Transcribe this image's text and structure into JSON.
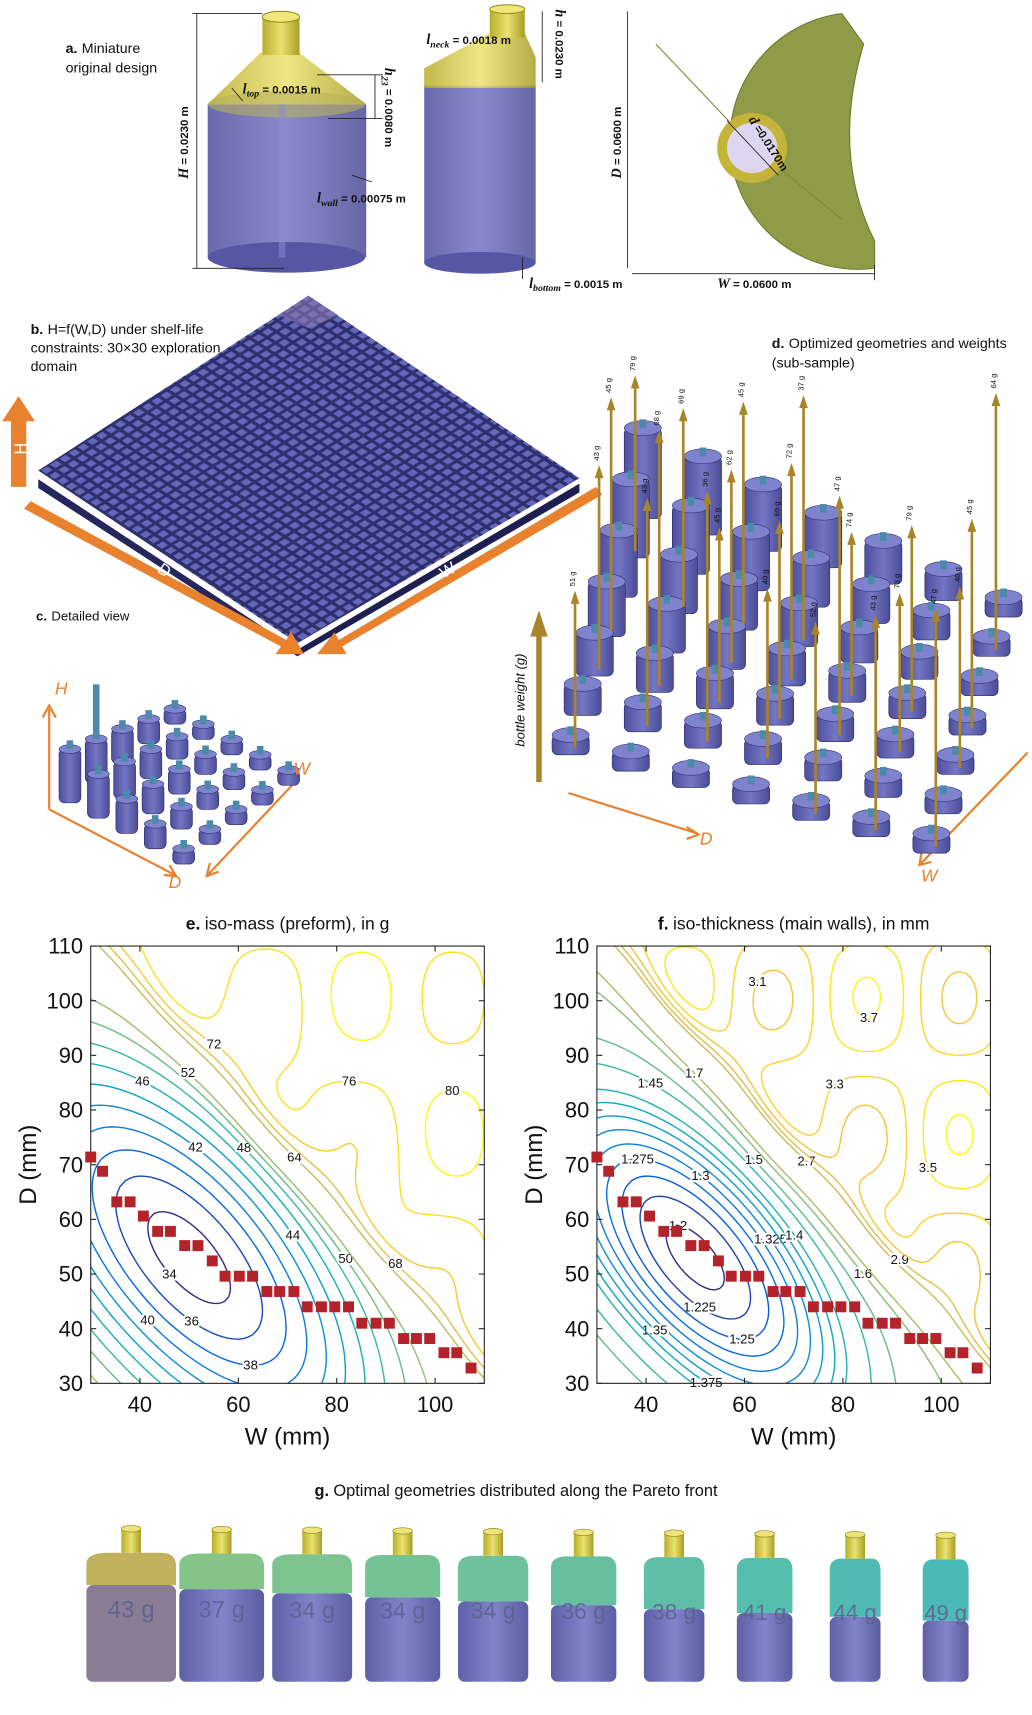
{
  "panel_a": {
    "label": "a.",
    "title_lines": [
      "Miniature",
      "original design"
    ],
    "dimensions": [
      {
        "symbol": "l",
        "sub": "top",
        "text": " = 0.0015 m"
      },
      {
        "symbol": "h",
        "sub": "23",
        "text": " = 0.0080 m"
      },
      {
        "symbol": "H",
        "text": " = 0.0230 m"
      },
      {
        "symbol": "l",
        "sub": "wall",
        "text": " = 0.00075 m"
      },
      {
        "symbol": "l",
        "sub": "neck",
        "text": " = 0.0018 m"
      },
      {
        "symbol": "h",
        "text": " = 0.0230 m"
      },
      {
        "symbol": "l",
        "sub": "bottom",
        "text": " = 0.0015 m"
      },
      {
        "symbol": "D",
        "text": " = 0.0600 m"
      },
      {
        "symbol": "d",
        "text": " =0.0170m"
      },
      {
        "symbol": "W",
        "text": " = 0.0600 m"
      }
    ]
  },
  "panel_b": {
    "label": "b.",
    "title_lines": [
      "H=f(W,D) under shelf-life",
      "constraints: 30×30 exploration",
      "domain"
    ],
    "axes": [
      "H",
      "D",
      "W"
    ]
  },
  "panel_c": {
    "label": "c.",
    "title": "Detailed view",
    "axes": [
      "H",
      "W",
      "D"
    ]
  },
  "panel_d": {
    "label": "d.",
    "title_lines": [
      "Optimized geometries and weights",
      "(sub-sample)"
    ],
    "axis_label": "bottle weight (g)",
    "axes": [
      "D",
      "W"
    ],
    "weight_labels": [
      "51 g",
      "69 g",
      "47 g",
      "45 g",
      "43 g",
      "68 g",
      "52 g",
      "45 g",
      "40 g",
      "45 g",
      "36 g",
      "79 g",
      "43 g",
      "74 g",
      "43 g",
      "37 g",
      "40 g",
      "45 g",
      "73 g",
      "69 g",
      "47 g",
      "79 g",
      "72 g",
      "64 g",
      "62 g"
    ]
  },
  "chart_data": [
    {
      "type": "contour",
      "label": "e.",
      "title": "iso-mass (preform), in g",
      "xlabel": "W (mm)",
      "ylabel": "D (mm)",
      "xlim": [
        30,
        110
      ],
      "ylim": [
        30,
        110
      ],
      "xticks": [
        40,
        60,
        80,
        100
      ],
      "yticks": [
        30,
        40,
        50,
        60,
        70,
        80,
        90,
        100,
        110
      ],
      "contour_levels": [
        34,
        36,
        38,
        40,
        42,
        44,
        46,
        48,
        50,
        52,
        64,
        68,
        72,
        76,
        80
      ],
      "pareto": {
        "color": "#b5232a",
        "x": [
          30,
          32.4,
          35.3,
          38,
          40.7,
          43.6,
          46.2,
          49.1,
          51.8,
          54.7,
          57.3,
          60.2,
          62.9,
          65.8,
          68.4,
          71.3,
          74,
          76.9,
          79.6,
          82.4,
          85.1,
          88,
          90.7,
          93.6,
          96.2,
          98.9,
          101.8,
          104.4,
          107.3
        ],
        "y": [
          71.4,
          68.8,
          63.2,
          63.2,
          60.6,
          57.8,
          57.8,
          55.2,
          55.2,
          52.4,
          49.6,
          49.6,
          49.6,
          46.8,
          46.8,
          46.8,
          44,
          44,
          44,
          44,
          41,
          41,
          41,
          38.2,
          38.2,
          38.2,
          35.6,
          35.6,
          32.8
        ]
      }
    },
    {
      "type": "contour",
      "label": "f.",
      "title": "iso-thickness (main walls), in mm",
      "xlabel": "W (mm)",
      "ylabel": "D (mm)",
      "xlim": [
        30,
        110
      ],
      "ylim": [
        30,
        110
      ],
      "xticks": [
        40,
        60,
        80,
        100
      ],
      "yticks": [
        30,
        40,
        50,
        60,
        70,
        80,
        90,
        100,
        110
      ],
      "contour_levels": [
        1.2,
        1.225,
        1.25,
        1.275,
        1.3,
        1.325,
        1.35,
        1.375,
        1.4,
        1.45,
        1.5,
        1.6,
        1.7,
        2.7,
        2.9,
        3.1,
        3.3,
        3.5,
        3.7
      ],
      "pareto": {
        "color": "#b5232a",
        "x": [
          30,
          32.4,
          35.3,
          38,
          40.7,
          43.6,
          46.2,
          49.1,
          51.8,
          54.7,
          57.3,
          60.2,
          62.9,
          65.8,
          68.4,
          71.3,
          74,
          76.9,
          79.6,
          82.4,
          85.1,
          88,
          90.7,
          93.6,
          96.2,
          98.9,
          101.8,
          104.4,
          107.3
        ],
        "y": [
          71.4,
          68.8,
          63.2,
          63.2,
          60.6,
          57.8,
          57.8,
          55.2,
          55.2,
          52.4,
          49.6,
          49.6,
          49.6,
          46.8,
          46.8,
          46.8,
          44,
          44,
          44,
          44,
          41,
          41,
          41,
          38.2,
          38.2,
          38.2,
          35.6,
          35.6,
          32.8
        ]
      }
    }
  ],
  "panel_g": {
    "label": "g.",
    "title": "Optimal geometries distributed along the Pareto front",
    "bottle_labels": [
      "43 g",
      "37 g",
      "34 g",
      "34 g",
      "34 g",
      "36 g",
      "38 g",
      "41 g",
      "44 g",
      "49 g"
    ]
  }
}
